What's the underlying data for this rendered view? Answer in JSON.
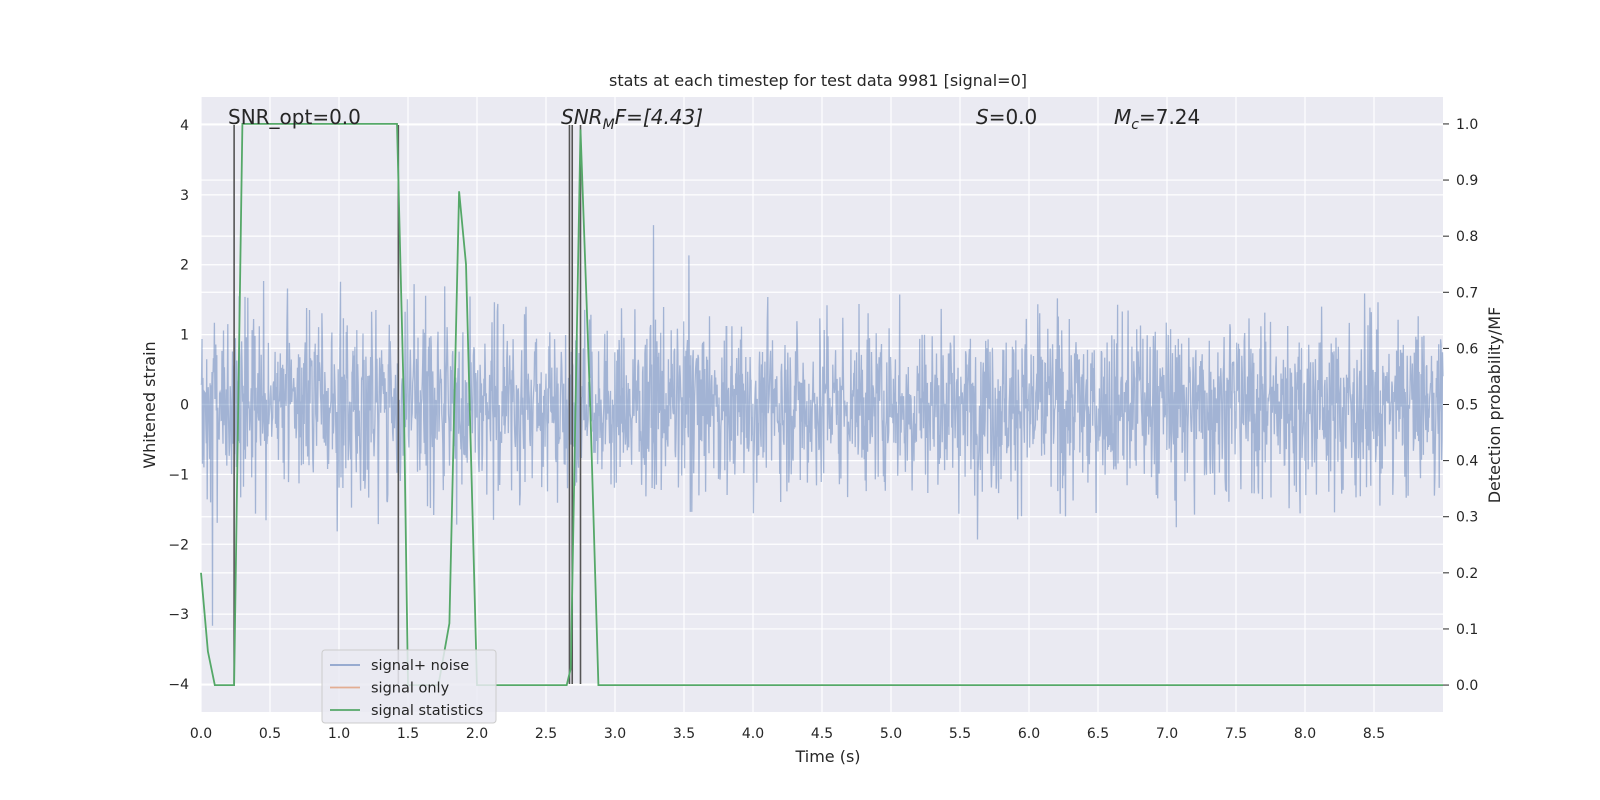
{
  "chart_data": {
    "type": "line",
    "title": "stats at each timestep for test data 9981 [signal=0]",
    "xlabel": "Time (s)",
    "ylabel": "Whitened strain",
    "y2label": "Detection probability/MF",
    "xlim": [
      0.0,
      9.0
    ],
    "ylim": [
      -4.4,
      4.4
    ],
    "y2lim": [
      -0.048,
      1.048
    ],
    "xticks": [
      "0.0",
      "0.5",
      "1.0",
      "1.5",
      "2.0",
      "2.5",
      "3.0",
      "3.5",
      "4.0",
      "4.5",
      "5.0",
      "5.5",
      "6.0",
      "6.5",
      "7.0",
      "7.5",
      "8.0",
      "8.5"
    ],
    "yticks": [
      "4",
      "3",
      "2",
      "1",
      "0",
      "−1",
      "−2",
      "−3",
      "−4"
    ],
    "y2ticks": [
      "1.0",
      "0.9",
      "0.8",
      "0.7",
      "0.6",
      "0.5",
      "0.4",
      "0.3",
      "0.2",
      "0.1",
      "0.0"
    ],
    "grid": true,
    "legend": {
      "position": "lower-left",
      "entries": [
        {
          "label": "signal+ noise",
          "color": "#4c72b0"
        },
        {
          "label": "signal only",
          "color": "#dd8452"
        },
        {
          "label": "signal statistics",
          "color": "#55a868"
        }
      ]
    },
    "annotations": {
      "snr_opt": "SNR_opt=0.0",
      "snr_mf_main": "SNR",
      "snr_mf_sub": "M",
      "snr_mf_rest": "F=[4.43]",
      "s_main": "S",
      "s_rest": "=0.0",
      "mc_main": "M",
      "mc_sub": "c",
      "mc_rest": "=7.24"
    },
    "series": [
      {
        "name": "signal+ noise",
        "color": "#4c72b0",
        "description_values": "noise-like whitened strain, roughly within ±2 with spikes up to ~3.7 and down to ~-3.9"
      },
      {
        "name": "signal statistics",
        "color": "#55a868",
        "axis": "right",
        "x": [
          0.0,
          0.05,
          0.1,
          0.24,
          0.3,
          0.35,
          1.42,
          1.47,
          1.5,
          1.72,
          1.8,
          1.87,
          1.92,
          2.0,
          2.05,
          2.65,
          2.68,
          2.75,
          2.82,
          2.88,
          6.0,
          7.0,
          9.0
        ],
        "y": [
          0.2,
          0.06,
          0.0,
          0.0,
          1.0,
          1.0,
          1.0,
          0.5,
          0.0,
          0.0,
          0.11,
          0.88,
          0.75,
          0.0,
          0.0,
          0.0,
          0.03,
          0.99,
          0.5,
          0.0,
          0.0,
          0.0,
          0.0
        ]
      }
    ],
    "vlines": [
      0.24,
      1.43,
      2.67,
      2.69,
      2.75
    ]
  }
}
